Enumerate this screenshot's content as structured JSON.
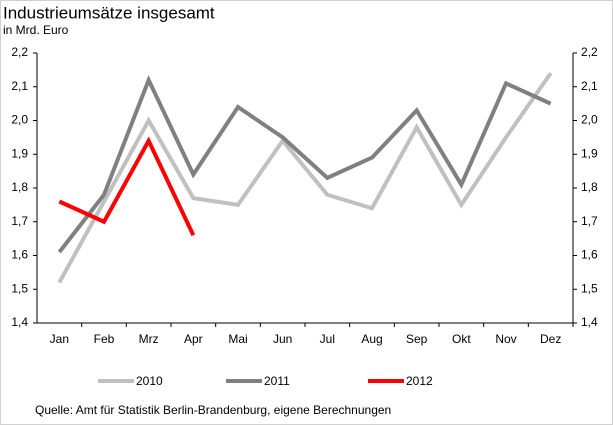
{
  "chart_data": {
    "type": "line",
    "title": "Industrieumsätze insgesamt",
    "subtitle": "in Mrd. Euro",
    "categories": [
      "Jan",
      "Feb",
      "Mrz",
      "Apr",
      "Mai",
      "Jun",
      "Jul",
      "Aug",
      "Sep",
      "Okt",
      "Nov",
      "Dez"
    ],
    "series": [
      {
        "name": "2010",
        "color": "#c0c0c0",
        "values": [
          1.52,
          1.76,
          2.0,
          1.77,
          1.75,
          1.94,
          1.78,
          1.74,
          1.98,
          1.75,
          1.95,
          2.14
        ]
      },
      {
        "name": "2011",
        "color": "#808080",
        "values": [
          1.61,
          1.78,
          2.12,
          1.84,
          2.04,
          1.95,
          1.83,
          1.89,
          2.03,
          1.81,
          2.11,
          2.05
        ]
      },
      {
        "name": "2012",
        "color": "#ff0000",
        "values": [
          1.76,
          1.7,
          1.94,
          1.66,
          null,
          null,
          null,
          null,
          null,
          null,
          null,
          null
        ]
      }
    ],
    "ylim": [
      1.4,
      2.2
    ],
    "yticks": [
      {
        "value": 1.4,
        "label": "1,4"
      },
      {
        "value": 1.5,
        "label": "1,5"
      },
      {
        "value": 1.6,
        "label": "1,6"
      },
      {
        "value": 1.7,
        "label": "1,7"
      },
      {
        "value": 1.8,
        "label": "1,8"
      },
      {
        "value": 1.9,
        "label": "1,9"
      },
      {
        "value": 2.0,
        "label": "2,0"
      },
      {
        "value": 2.1,
        "label": "2,1"
      },
      {
        "value": 2.2,
        "label": "2,2"
      }
    ],
    "y2lim": [
      1.4,
      2.2
    ],
    "y2ticks": [
      {
        "value": 1.4,
        "label": "1,4"
      },
      {
        "value": 1.5,
        "label": "1,5"
      },
      {
        "value": 1.6,
        "label": "1,6"
      },
      {
        "value": 1.7,
        "label": "1,7"
      },
      {
        "value": 1.8,
        "label": "1,8"
      },
      {
        "value": 1.9,
        "label": "1,9"
      },
      {
        "value": 2.0,
        "label": "2,0"
      },
      {
        "value": 2.1,
        "label": "2,1"
      },
      {
        "value": 2.2,
        "label": "2,2"
      }
    ],
    "grid": false,
    "legend": "bottom",
    "source": "Quelle: Amt für Statistik Berlin-Brandenburg, eigene Berechnungen"
  }
}
